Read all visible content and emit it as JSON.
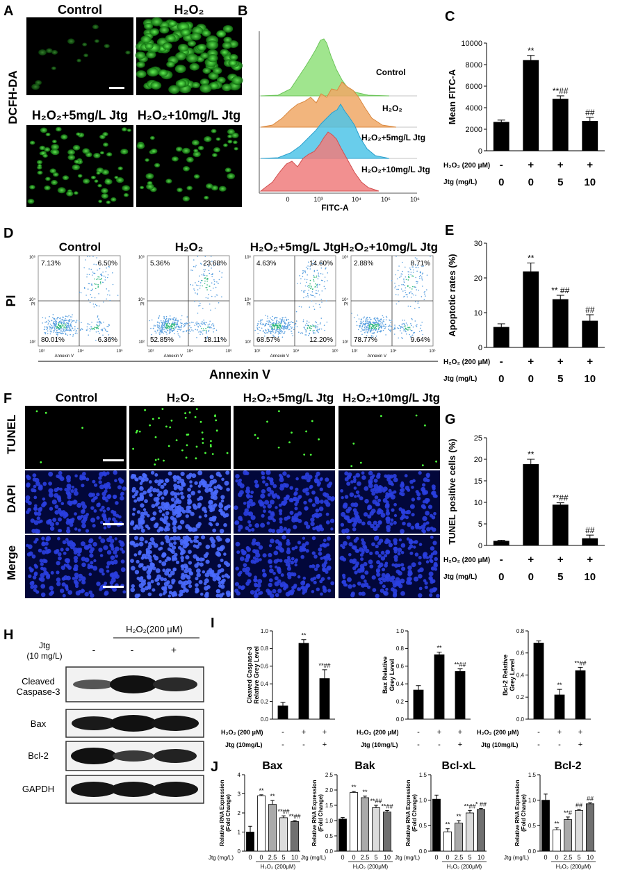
{
  "panel_letters": [
    "A",
    "B",
    "C",
    "D",
    "E",
    "F",
    "G",
    "H",
    "I",
    "J"
  ],
  "group_labels": [
    "Control",
    "H₂O₂",
    "H₂O₂+5mg/L Jtg",
    "H₂O₂+10mg/L Jtg"
  ],
  "panel_a": {
    "stain_label": "DCFH-DA"
  },
  "panel_b": {
    "xlabel": "FITC-A",
    "ticks": [
      "0",
      "10³",
      "10⁴",
      "10⁵",
      "10⁶"
    ]
  },
  "panel_d": {
    "ylabel": "PI",
    "xlabel": "Annexin V",
    "axis_x": "Annexin V",
    "axis_y": "PI",
    "ticks": [
      "10²",
      "10⁴",
      "10⁶"
    ],
    "quadrants": [
      {
        "ul": "7.13%",
        "ur": "6.50%",
        "ll": "80.01%",
        "lr": "6.36%"
      },
      {
        "ul": "5.36%",
        "ur": "23.68%",
        "ll": "52.85%",
        "lr": "18.11%"
      },
      {
        "ul": "4.63%",
        "ur": "14.60%",
        "ll": "68.57%",
        "lr": "12.20%"
      },
      {
        "ul": "2.88%",
        "ur": "8.71%",
        "ll": "78.77%",
        "lr": "9.64%"
      }
    ]
  },
  "panel_f": {
    "rows": [
      "TUNEL",
      "DAPI",
      "Merge"
    ]
  },
  "panel_h": {
    "h2o2_header": "H₂O₂(200 μM)",
    "jtg_label_line1": "Jtg",
    "jtg_label_line2": "(10 mg/L)",
    "jtg_signs": [
      "-",
      "-",
      "+"
    ],
    "bands": [
      "Cleaved Caspase-3",
      "Bax",
      "Bcl-2",
      "GAPDH"
    ]
  },
  "condition_rows": {
    "h2o2_label": "H₂O₂ (200 μM)",
    "jtg_label": "Jtg (mg/L)",
    "h2o2_signs": [
      "-",
      "+",
      "+",
      "+"
    ],
    "jtg_values": [
      "0",
      "0",
      "5",
      "10"
    ]
  },
  "panel_i_rows": {
    "h2o2_label": "H₂O₂ (200 μM)",
    "jtg_label": "Jtg (10mg/L)",
    "h2o2_signs": [
      "-",
      "+",
      "+"
    ],
    "jtg_signs": [
      "-",
      "-",
      "+"
    ]
  },
  "panel_j_axis": {
    "jtg_label": "Jtg (mg/L)",
    "ticks": [
      "0",
      "0",
      "2.5",
      "5",
      "10"
    ],
    "h2o2_label": "H₂O₂ (200μM)"
  },
  "colors": {
    "bar": "#000000",
    "j_bars": [
      "#000000",
      "#ffffff",
      "#aaaaaa",
      "#dcdcdc",
      "#707070"
    ],
    "flow_green": "#8fe07a",
    "flow_orange": "#f0a866",
    "flow_blue": "#4fc4e8",
    "flow_red": "#f07c7c",
    "fluor_green": "#33cc33",
    "fluor_blue": "#1a2fd6"
  },
  "chart_data": [
    {
      "id": "C",
      "type": "bar",
      "ylabel": "Mean FITC-A",
      "categories": [
        "1",
        "2",
        "3",
        "4"
      ],
      "values": [
        2650,
        8400,
        4800,
        2750
      ],
      "errors": [
        200,
        450,
        300,
        350
      ],
      "annotations": [
        "",
        "**",
        "**##",
        "##"
      ],
      "ylim": [
        0,
        10000
      ],
      "yticks": [
        "0",
        "2000",
        "4000",
        "6000",
        "8000",
        "10000"
      ]
    },
    {
      "id": "E",
      "type": "bar",
      "ylabel": "Apoptotic rates (%)",
      "categories": [
        "1",
        "2",
        "3",
        "4"
      ],
      "values": [
        5.8,
        21.8,
        13.8,
        7.6
      ],
      "errors": [
        1.0,
        2.5,
        1.2,
        1.8
      ],
      "annotations": [
        "",
        "**",
        "** ##",
        "##"
      ],
      "ylim": [
        0,
        30
      ],
      "yticks": [
        "0",
        "10",
        "20",
        "30"
      ]
    },
    {
      "id": "G",
      "type": "bar",
      "ylabel": "TUNEL positive cells (%)",
      "categories": [
        "1",
        "2",
        "3",
        "4"
      ],
      "values": [
        1.0,
        18.8,
        9.4,
        1.6
      ],
      "errors": [
        0.2,
        1.2,
        0.5,
        0.8
      ],
      "annotations": [
        "",
        "**",
        "**##",
        "##"
      ],
      "ylim": [
        0,
        25
      ],
      "yticks": [
        "0",
        "5",
        "10",
        "15",
        "20",
        "25"
      ]
    },
    {
      "id": "I1",
      "type": "bar",
      "ylabel": "Cleaved Caspase-3 Relative Grey Level",
      "categories": [
        "1",
        "2",
        "3"
      ],
      "values": [
        0.15,
        0.86,
        0.46
      ],
      "errors": [
        0.04,
        0.04,
        0.1
      ],
      "annotations": [
        "",
        "**",
        "**##"
      ],
      "ylim": [
        0,
        1.0
      ],
      "yticks": [
        "0.0",
        "0.2",
        "0.4",
        "0.6",
        "0.8",
        "1.0"
      ]
    },
    {
      "id": "I2",
      "type": "bar",
      "ylabel": "Bax Relative Grey Level",
      "categories": [
        "1",
        "2",
        "3"
      ],
      "values": [
        0.33,
        0.73,
        0.54
      ],
      "errors": [
        0.05,
        0.03,
        0.03
      ],
      "annotations": [
        "",
        "**",
        "**##"
      ],
      "ylim": [
        0,
        1.0
      ],
      "yticks": [
        "0.0",
        "0.2",
        "0.4",
        "0.6",
        "0.8",
        "1.0"
      ]
    },
    {
      "id": "I3",
      "type": "bar",
      "ylabel": "Bcl-2 Relative Grey Level",
      "categories": [
        "1",
        "2",
        "3"
      ],
      "values": [
        0.69,
        0.22,
        0.44
      ],
      "errors": [
        0.02,
        0.05,
        0.03
      ],
      "annotations": [
        "",
        "**",
        "**##"
      ],
      "ylim": [
        0,
        0.8
      ],
      "yticks": [
        "0.0",
        "0.2",
        "0.4",
        "0.6",
        "0.8"
      ]
    },
    {
      "id": "J1",
      "type": "bar",
      "title": "Bax",
      "ylabel": "Relative RNA Expression (Fold Change)",
      "categories": [
        "0",
        "0",
        "2.5",
        "5",
        "10"
      ],
      "values": [
        1.0,
        2.9,
        2.45,
        1.75,
        1.55
      ],
      "errors": [
        0.3,
        0.05,
        0.2,
        0.1,
        0.05
      ],
      "annotations": [
        "",
        "**",
        "**",
        "**##",
        "**##"
      ],
      "ylim": [
        0,
        4
      ],
      "yticks": [
        "0",
        "1",
        "2",
        "3",
        "4"
      ]
    },
    {
      "id": "J2",
      "type": "bar",
      "title": "Bak",
      "ylabel": "Relative RNA Expression (Fold Change)",
      "categories": [
        "0",
        "0",
        "2.5",
        "5",
        "10"
      ],
      "values": [
        1.05,
        1.92,
        1.75,
        1.42,
        1.28
      ],
      "errors": [
        0.05,
        0.03,
        0.05,
        0.08,
        0.05
      ],
      "annotations": [
        "",
        "**",
        "**",
        "**##",
        "**##"
      ],
      "ylim": [
        0,
        2.5
      ],
      "yticks": [
        "0.0",
        "0.5",
        "1.0",
        "1.5",
        "2.0",
        "2.5"
      ]
    },
    {
      "id": "J3",
      "type": "bar",
      "title": "Bcl-xL",
      "ylabel": "Relative RNA Expression (Fold Change)",
      "categories": [
        "0",
        "0",
        "2.5",
        "5",
        "10"
      ],
      "values": [
        1.02,
        0.38,
        0.55,
        0.75,
        0.82
      ],
      "errors": [
        0.08,
        0.06,
        0.05,
        0.05,
        0.02
      ],
      "annotations": [
        "",
        "**",
        "**",
        "**##",
        "* ##"
      ],
      "ylim": [
        0,
        1.5
      ],
      "yticks": [
        "0.0",
        "0.5",
        "1.0",
        "1.5"
      ]
    },
    {
      "id": "J4",
      "type": "bar",
      "title": "Bcl-2",
      "ylabel": "Relative RNA Expression (Fold Change)",
      "categories": [
        "0",
        "0",
        "2.5",
        "5",
        "10"
      ],
      "values": [
        1.0,
        0.42,
        0.62,
        0.8,
        0.93
      ],
      "errors": [
        0.12,
        0.04,
        0.05,
        0.02,
        0.02
      ],
      "annotations": [
        "",
        "**",
        "**#",
        "##",
        "##"
      ],
      "ylim": [
        0,
        1.5
      ],
      "yticks": [
        "0.0",
        "0.5",
        "1.0",
        "1.5"
      ]
    }
  ]
}
